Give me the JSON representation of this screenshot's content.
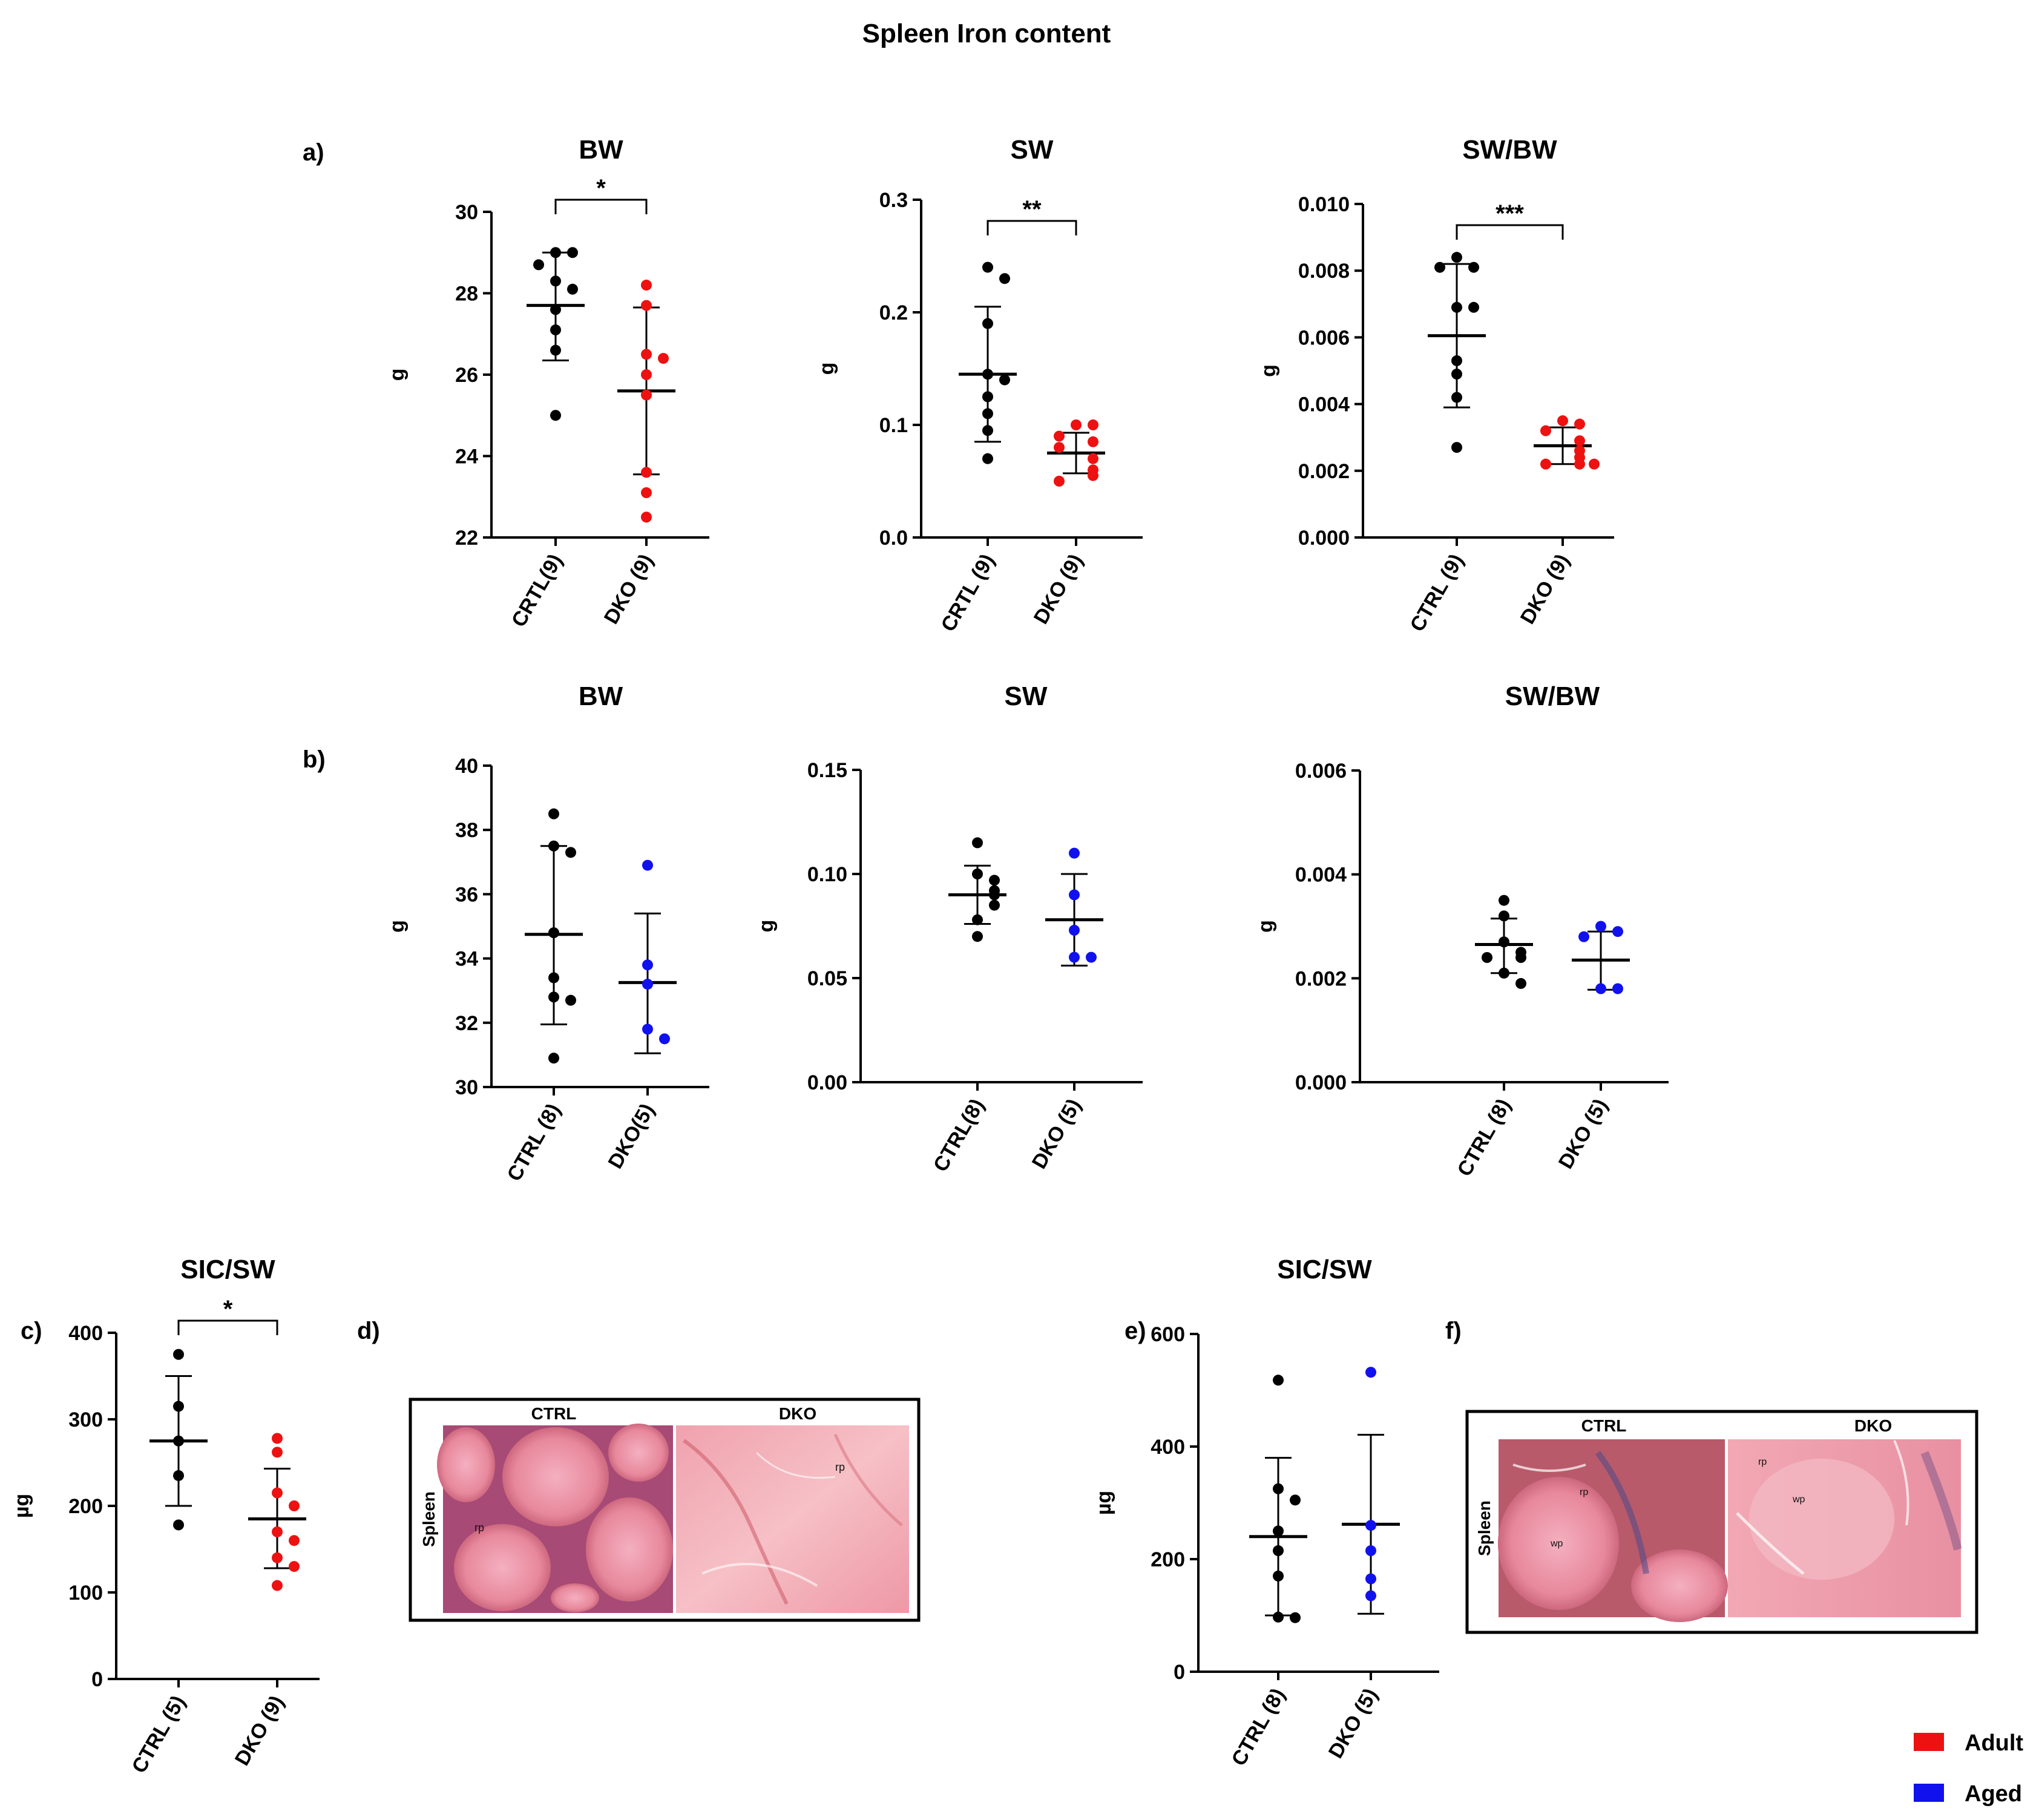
{
  "figure": {
    "title": "Spleen Iron content",
    "panel_labels": {
      "a": "a)",
      "b": "b)",
      "c": "c)",
      "d": "d)",
      "e": "e)",
      "f": "f)"
    },
    "legend": [
      {
        "label": "Adult",
        "color": "#ee1111"
      },
      {
        "label": "Aged",
        "color": "#1111ee"
      }
    ],
    "colors": {
      "ctrl": "#000000",
      "adult": "#ee1111",
      "aged": "#1111ee"
    }
  },
  "histology": {
    "d": {
      "ctrl_label": "CTRL",
      "dko_label": "DKO",
      "tissue_label": "Spleen",
      "ctrl_annotations": [
        "rp"
      ],
      "dko_annotations": [
        "rp"
      ]
    },
    "f": {
      "ctrl_label": "CTRL",
      "dko_label": "DKO",
      "tissue_label": "Spleen",
      "ctrl_annotations": [
        "rp",
        "wp"
      ],
      "dko_annotations": [
        "rp",
        "wp"
      ]
    }
  },
  "chart_data": [
    {
      "id": "a-bw",
      "type": "scatter",
      "title": "BW",
      "ylabel": "g",
      "ylim": [
        22,
        30
      ],
      "yticks": [
        "22",
        "24",
        "26",
        "28",
        "30"
      ],
      "groups": [
        {
          "label": "CRTL(9)",
          "color": "ctrl",
          "points": [
            29.0,
            29.0,
            28.7,
            28.3,
            28.1,
            27.6,
            27.1,
            26.6,
            25.0
          ],
          "mean": 27.7,
          "err_low": 26.35,
          "err_high": 29.0
        },
        {
          "label": "DKO (9)",
          "color": "adult",
          "points": [
            28.2,
            27.7,
            26.5,
            26.4,
            26.0,
            25.5,
            23.6,
            23.1,
            22.5
          ],
          "mean": 25.6,
          "err_low": 23.55,
          "err_high": 27.65
        }
      ],
      "significance": "*"
    },
    {
      "id": "a-sw",
      "type": "scatter",
      "title": "SW",
      "ylabel": "g",
      "ylim": [
        0,
        0.3
      ],
      "yticks": [
        "0.0",
        "0.1",
        "0.2",
        "0.3"
      ],
      "groups": [
        {
          "label": "CRTL (9)",
          "color": "ctrl",
          "points": [
            0.24,
            0.23,
            0.19,
            0.145,
            0.14,
            0.125,
            0.11,
            0.095,
            0.07
          ],
          "mean": 0.145,
          "err_low": 0.085,
          "err_high": 0.205
        },
        {
          "label": "DKO (9)",
          "color": "adult",
          "points": [
            0.1,
            0.1,
            0.09,
            0.085,
            0.08,
            0.07,
            0.06,
            0.055,
            0.05
          ],
          "mean": 0.075,
          "err_low": 0.057,
          "err_high": 0.093
        }
      ],
      "significance": "**"
    },
    {
      "id": "a-swbw",
      "type": "scatter",
      "title": "SW/BW",
      "ylabel": "g",
      "ylim": [
        0,
        0.01
      ],
      "yticks": [
        "0.000",
        "0.002",
        "0.004",
        "0.006",
        "0.008",
        "0.010"
      ],
      "groups": [
        {
          "label": "CTRL (9)",
          "color": "ctrl",
          "points": [
            0.0084,
            0.0081,
            0.0081,
            0.0069,
            0.0069,
            0.0053,
            0.0049,
            0.0042,
            0.0027
          ],
          "mean": 0.00605,
          "err_low": 0.0039,
          "err_high": 0.0082
        },
        {
          "label": "DKO (9)",
          "color": "adult",
          "points": [
            0.0035,
            0.0034,
            0.0032,
            0.0029,
            0.0026,
            0.0024,
            0.0022,
            0.0022,
            0.0022
          ],
          "mean": 0.00275,
          "err_low": 0.0022,
          "err_high": 0.0033
        }
      ],
      "significance": "***"
    },
    {
      "id": "b-bw",
      "type": "scatter",
      "title": "BW",
      "ylabel": "g",
      "ylim": [
        30,
        40
      ],
      "yticks": [
        "30",
        "32",
        "34",
        "36",
        "38",
        "40"
      ],
      "groups": [
        {
          "label": "CTRL (8)",
          "color": "ctrl",
          "points": [
            38.5,
            37.5,
            37.3,
            34.8,
            33.4,
            32.8,
            32.7,
            30.9
          ],
          "mean": 34.75,
          "err_low": 31.95,
          "err_high": 37.5
        },
        {
          "label": "DKO(5)",
          "color": "aged",
          "points": [
            36.9,
            33.8,
            33.2,
            31.8,
            31.5
          ],
          "mean": 33.25,
          "err_low": 31.05,
          "err_high": 35.4
        }
      ],
      "significance": ""
    },
    {
      "id": "b-sw",
      "type": "scatter",
      "title": "SW",
      "ylabel": "g",
      "ylim": [
        0,
        0.15
      ],
      "yticks": [
        "0.00",
        "0.05",
        "0.10",
        "0.15"
      ],
      "groups": [
        {
          "label": "CTRL(8)",
          "color": "ctrl",
          "points": [
            0.115,
            0.1,
            0.097,
            0.092,
            0.09,
            0.085,
            0.078,
            0.07
          ],
          "mean": 0.09,
          "err_low": 0.076,
          "err_high": 0.104
        },
        {
          "label": "DKO (5)",
          "color": "aged",
          "points": [
            0.11,
            0.09,
            0.073,
            0.06,
            0.06
          ],
          "mean": 0.078,
          "err_low": 0.056,
          "err_high": 0.1
        }
      ],
      "significance": ""
    },
    {
      "id": "b-swbw",
      "type": "scatter",
      "title": "SW/BW",
      "ylabel": "g",
      "ylim": [
        0,
        0.006
      ],
      "yticks": [
        "0.000",
        "0.002",
        "0.004",
        "0.006"
      ],
      "groups": [
        {
          "label": "CTRL (8)",
          "color": "ctrl",
          "points": [
            0.0035,
            0.0032,
            0.0027,
            0.0025,
            0.0024,
            0.0024,
            0.0021,
            0.0019
          ],
          "mean": 0.00265,
          "err_low": 0.0021,
          "err_high": 0.00315
        },
        {
          "label": "DKO (5)",
          "color": "aged",
          "points": [
            0.003,
            0.0029,
            0.0028,
            0.0018,
            0.0018
          ],
          "mean": 0.00235,
          "err_low": 0.00178,
          "err_high": 0.0029
        }
      ],
      "significance": ""
    },
    {
      "id": "c-sicsw",
      "type": "scatter",
      "title": "SIC/SW",
      "ylabel": "µg",
      "ylim": [
        0,
        400
      ],
      "yticks": [
        "0",
        "100",
        "200",
        "300",
        "400"
      ],
      "groups": [
        {
          "label": "CTRL (5)",
          "color": "ctrl",
          "points": [
            375,
            315,
            275,
            235,
            178
          ],
          "mean": 275,
          "err_low": 200,
          "err_high": 350
        },
        {
          "label": "DKO (9)",
          "color": "adult",
          "points": [
            278,
            262,
            215,
            200,
            170,
            160,
            140,
            130,
            108
          ],
          "mean": 185,
          "err_low": 128,
          "err_high": 243
        }
      ],
      "significance": "*"
    },
    {
      "id": "e-sicsw",
      "type": "scatter",
      "title": "SIC/SW",
      "ylabel": "µg",
      "ylim": [
        0,
        600
      ],
      "yticks": [
        "0",
        "200",
        "400",
        "600"
      ],
      "groups": [
        {
          "label": "CTRL (8)",
          "color": "ctrl",
          "points": [
            518,
            325,
            305,
            250,
            215,
            170,
            97,
            96
          ],
          "mean": 240,
          "err_low": 100,
          "err_high": 380
        },
        {
          "label": "DKO (5)",
          "color": "aged",
          "points": [
            532,
            260,
            215,
            165,
            135
          ],
          "mean": 262,
          "err_low": 103,
          "err_high": 421
        }
      ],
      "significance": ""
    }
  ]
}
